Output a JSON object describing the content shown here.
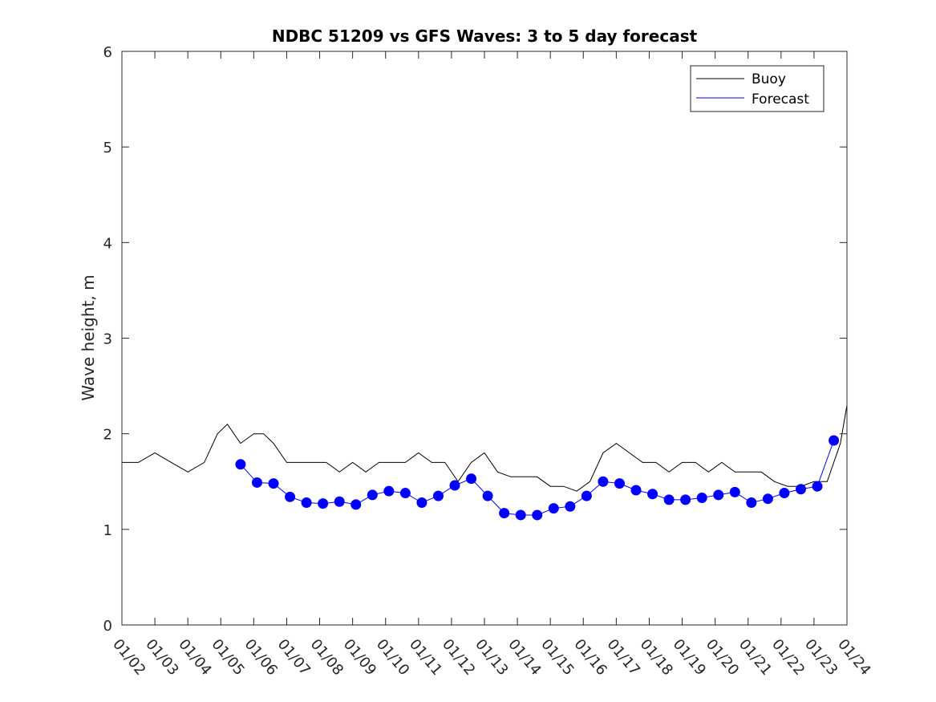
{
  "chart_data": {
    "type": "line",
    "title": "NDBC 51209 vs GFS Waves: 3 to 5 day forecast",
    "xlabel": "",
    "ylabel": "Wave height, m",
    "xlim": [
      0,
      22
    ],
    "ylim": [
      0,
      6
    ],
    "yticks": [
      0,
      1,
      2,
      3,
      4,
      5,
      6
    ],
    "x_tick_labels": [
      "01/02",
      "01/03",
      "01/04",
      "01/05",
      "01/06",
      "01/07",
      "01/08",
      "01/09",
      "01/10",
      "01/11",
      "01/12",
      "01/13",
      "01/14",
      "01/15",
      "01/16",
      "01/17",
      "01/18",
      "01/19",
      "01/20",
      "01/21",
      "01/22",
      "01/23",
      "01/24"
    ],
    "x_units": "days since 01/02",
    "legend": {
      "position": "top-right",
      "entries": [
        {
          "name": "Buoy",
          "color": "#000000"
        },
        {
          "name": "Forecast",
          "color": "#0000ff"
        }
      ]
    },
    "series": [
      {
        "name": "Buoy",
        "color": "#000000",
        "style": "line",
        "x": [
          0.0,
          0.5,
          1.0,
          1.5,
          2.0,
          2.5,
          2.9,
          3.2,
          3.6,
          4.0,
          4.3,
          4.6,
          5.0,
          5.4,
          5.8,
          6.2,
          6.6,
          7.0,
          7.4,
          7.8,
          8.2,
          8.6,
          9.0,
          9.4,
          9.8,
          10.2,
          10.6,
          11.0,
          11.4,
          11.8,
          12.2,
          12.6,
          13.0,
          13.4,
          13.8,
          14.2,
          14.6,
          15.0,
          15.4,
          15.8,
          16.2,
          16.6,
          17.0,
          17.4,
          17.8,
          18.2,
          18.6,
          19.0,
          19.4,
          19.8,
          20.2,
          20.6,
          21.0,
          21.4,
          21.8,
          22.0
        ],
        "y": [
          1.7,
          1.7,
          1.8,
          1.7,
          1.6,
          1.7,
          2.0,
          2.1,
          1.9,
          2.0,
          2.0,
          1.9,
          1.7,
          1.7,
          1.7,
          1.7,
          1.6,
          1.7,
          1.6,
          1.7,
          1.7,
          1.7,
          1.8,
          1.7,
          1.7,
          1.5,
          1.7,
          1.8,
          1.6,
          1.55,
          1.55,
          1.55,
          1.45,
          1.45,
          1.4,
          1.5,
          1.8,
          1.9,
          1.8,
          1.7,
          1.7,
          1.6,
          1.7,
          1.7,
          1.6,
          1.7,
          1.6,
          1.6,
          1.6,
          1.5,
          1.45,
          1.45,
          1.5,
          1.5,
          1.9,
          2.3
        ]
      },
      {
        "name": "Forecast",
        "color": "#0000ff",
        "style": "line+markers",
        "x": [
          3.6,
          4.1,
          4.6,
          5.1,
          5.6,
          6.1,
          6.6,
          7.1,
          7.6,
          8.1,
          8.6,
          9.1,
          9.6,
          10.1,
          10.6,
          11.1,
          11.6,
          12.1,
          12.6,
          13.1,
          13.6,
          14.1,
          14.6,
          15.1,
          15.6,
          16.1,
          16.6,
          17.1,
          17.6,
          18.1,
          18.6,
          19.1,
          19.6,
          20.1,
          20.6,
          21.1,
          21.6
        ],
        "y": [
          1.68,
          1.49,
          1.48,
          1.34,
          1.28,
          1.27,
          1.29,
          1.26,
          1.36,
          1.4,
          1.38,
          1.28,
          1.35,
          1.46,
          1.53,
          1.35,
          1.17,
          1.15,
          1.15,
          1.22,
          1.24,
          1.35,
          1.5,
          1.48,
          1.41,
          1.37,
          1.31,
          1.31,
          1.33,
          1.36,
          1.39,
          1.28,
          1.32,
          1.38,
          1.42,
          1.45,
          1.93
        ]
      }
    ]
  }
}
